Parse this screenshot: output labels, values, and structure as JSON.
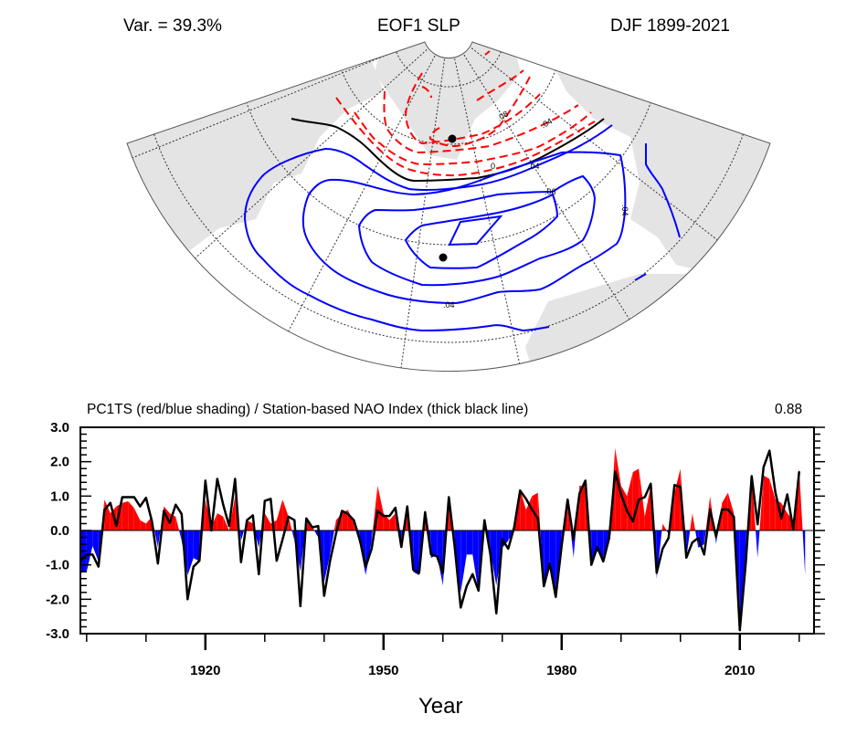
{
  "map": {
    "variance_label": "Var. = 39.3%",
    "title": "EOF1 SLP",
    "season_label": "DJF 1899-2021",
    "contour_labels": [
      ".08",
      ".04",
      "0",
      ".04",
      ".06",
      ".04",
      ".04"
    ],
    "colors": {
      "positive": "#ff0000",
      "negative": "#0000ff",
      "zero": "#000000",
      "land": "#e4e4e4"
    }
  },
  "chart_data": {
    "type": "area",
    "title": "PC1TS (red/blue shading) / Station-based NAO Index (thick black line)",
    "correlation_label": "0.88",
    "xlabel": "Year",
    "ylabel": "",
    "xlim": [
      1899,
      2021
    ],
    "ylim": [
      -3.0,
      3.0
    ],
    "x_ticks": [
      1920,
      1950,
      1980,
      2010
    ],
    "x_tick_labels": [
      "1920",
      "1950",
      "1980",
      "2010"
    ],
    "y_ticks": [
      3.0,
      2.0,
      1.0,
      0.0,
      -1.0,
      -2.0,
      -3.0
    ],
    "y_tick_labels": [
      "3.0",
      "2.0",
      "1.0",
      "0.0",
      "-1.0",
      "-2.0",
      "-3.0"
    ],
    "grid": false,
    "colors": {
      "positive": "#ff0000",
      "negative": "#0000ff",
      "line": "#000000"
    },
    "series": [
      {
        "name": "PC1TS",
        "start_year": 1899,
        "values": [
          -1.23,
          -1.2,
          -0.45,
          -0.9,
          0.9,
          0.5,
          0.7,
          0.8,
          0.85,
          0.65,
          0.3,
          0.2,
          0.4,
          -0.5,
          0.7,
          0.5,
          0.4,
          -0.3,
          -1.3,
          -0.8,
          -0.9,
          0.9,
          0.1,
          0.5,
          0.4,
          0.0,
          1.0,
          -0.3,
          0.3,
          0.2,
          -0.5,
          0.5,
          0.2,
          0.3,
          0.9,
          0.4,
          -0.3,
          -1.2,
          0.3,
          0.1,
          -0.2,
          -1.5,
          -0.7,
          0.3,
          0.5,
          0.6,
          0.2,
          -0.4,
          -1.3,
          -0.3,
          1.3,
          0.5,
          0.3,
          0.5,
          -0.5,
          0.5,
          -1.2,
          -1.3,
          0.6,
          -0.8,
          -0.7,
          -1.6,
          1.0,
          -0.7,
          -1.8,
          -0.7,
          -0.7,
          -1.8,
          0.3,
          -0.6,
          -1.6,
          -0.5,
          -0.3,
          0.0,
          1.2,
          0.6,
          1.0,
          1.1,
          -1.6,
          -0.9,
          -2.0,
          -0.2,
          0.9,
          -0.8,
          1.3,
          1.3,
          -1.0,
          -0.6,
          -0.8,
          -0.3,
          2.4,
          1.3,
          1.0,
          1.7,
          1.8,
          0.4,
          1.3,
          -1.4,
          0.2,
          -0.1,
          1.1,
          1.8,
          -0.8,
          0.5,
          -0.5,
          -0.4,
          1.0,
          -0.4,
          0.8,
          1.1,
          0.5,
          -2.9,
          -0.9,
          1.6,
          -0.8,
          1.6,
          1.5,
          0.9,
          0.8,
          0.5,
          0.3,
          1.8,
          -1.3
        ]
      },
      {
        "name": "Station-based NAO Index",
        "start_year": 1899,
        "values": [
          -0.88,
          -0.7,
          -0.7,
          -1.05,
          0.6,
          0.8,
          0.13,
          0.97,
          0.97,
          0.97,
          0.7,
          0.95,
          0.26,
          -0.96,
          0.57,
          0.22,
          0.75,
          0.48,
          -2.0,
          -1.05,
          -0.88,
          1.45,
          0.0,
          1.5,
          0.75,
          0.13,
          1.5,
          -0.92,
          0.3,
          0.44,
          -1.27,
          0.86,
          0.92,
          -0.88,
          -0.26,
          0.4,
          0.3,
          -2.2,
          0.35,
          0.09,
          0.13,
          -1.9,
          -0.88,
          -0.09,
          0.57,
          0.48,
          0.3,
          -0.26,
          -1.05,
          -0.53,
          0.57,
          0.42,
          0.42,
          0.66,
          -0.48,
          0.7,
          -1.14,
          -1.23,
          0.53,
          -0.7,
          -0.75,
          -1.23,
          0.97,
          -0.5,
          -2.24,
          -1.62,
          -1.27,
          -1.75,
          0.3,
          -0.7,
          -2.41,
          -0.26,
          -0.53,
          0.09,
          1.16,
          0.92,
          0.61,
          0.35,
          -1.62,
          -0.96,
          -1.93,
          -0.44,
          0.9,
          -0.26,
          1.07,
          1.45,
          -1.0,
          -0.48,
          -0.9,
          -0.22,
          1.71,
          1.05,
          0.57,
          0.26,
          0.9,
          0.97,
          1.36,
          -1.23,
          -0.53,
          -0.22,
          1.32,
          1.27,
          -0.79,
          -0.35,
          -0.22,
          -0.7,
          0.61,
          -0.18,
          0.61,
          0.61,
          0.4,
          -2.9,
          -0.96,
          1.58,
          0.18,
          1.84,
          2.32,
          1.1,
          0.35,
          1.05,
          0.04,
          1.71
        ]
      }
    ]
  }
}
